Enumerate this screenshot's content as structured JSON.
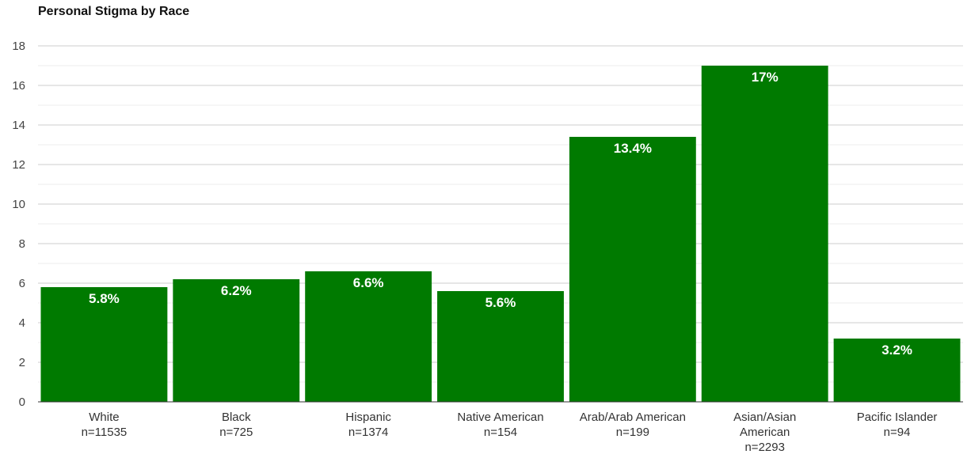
{
  "chart_data": {
    "type": "bar",
    "title": "Personal Stigma by Race",
    "xlabel": "",
    "ylabel": "",
    "ylim": [
      0,
      18
    ],
    "yticks": [
      0,
      2,
      4,
      6,
      8,
      10,
      12,
      14,
      16,
      18
    ],
    "grid": true,
    "legend": "none",
    "bar_color": "#007a00",
    "categories": [
      [
        "White",
        "n=11535"
      ],
      [
        "Black",
        "n=725"
      ],
      [
        "Hispanic",
        "n=1374"
      ],
      [
        "Native American",
        "n=154"
      ],
      [
        "Arab/Arab American",
        "n=199"
      ],
      [
        "Asian/Asian",
        "American",
        "n=2293"
      ],
      [
        "Pacific Islander",
        "n=94"
      ]
    ],
    "values": [
      5.8,
      6.2,
      6.6,
      5.6,
      13.4,
      17,
      3.2
    ],
    "data_labels": [
      "5.8%",
      "6.2%",
      "6.6%",
      "5.6%",
      "13.4%",
      "17%",
      "3.2%"
    ]
  }
}
